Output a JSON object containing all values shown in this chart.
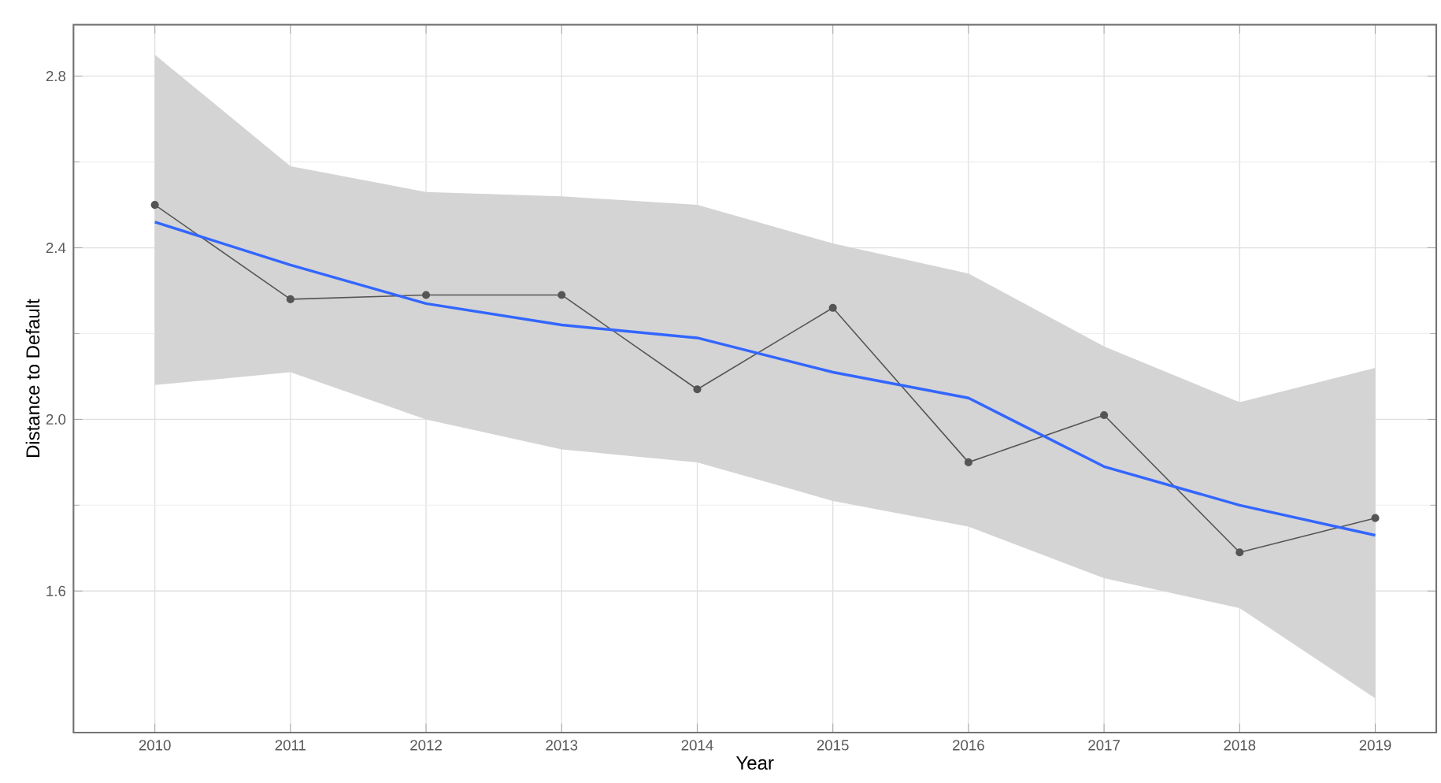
{
  "chart_data": {
    "type": "line",
    "xlabel": "Year",
    "ylabel": "Distance to Default",
    "x": [
      2010,
      2011,
      2012,
      2013,
      2014,
      2015,
      2016,
      2017,
      2018,
      2019
    ],
    "series": [
      {
        "color": "#555555",
        "marker": "circle",
        "values": [
          2.5,
          2.28,
          2.29,
          2.29,
          2.07,
          2.26,
          1.9,
          2.01,
          1.69,
          1.77
        ]
      },
      {
        "color": "#3366ff",
        "marker": "none",
        "values": [
          2.46,
          2.36,
          2.27,
          2.22,
          2.19,
          2.11,
          2.05,
          1.89,
          1.8,
          1.73
        ],
        "lower": [
          2.08,
          2.11,
          2.0,
          1.93,
          1.9,
          1.81,
          1.75,
          1.63,
          1.56,
          1.35
        ],
        "upper": [
          2.85,
          2.59,
          2.53,
          2.52,
          2.5,
          2.41,
          2.34,
          2.17,
          2.04,
          2.12
        ]
      }
    ],
    "xlim": [
      2009.4,
      2019.45
    ],
    "ylim": [
      1.27,
      2.92
    ],
    "xticks": [
      2010,
      2011,
      2012,
      2013,
      2014,
      2015,
      2016,
      2017,
      2018,
      2019
    ],
    "yticks": [
      {
        "value": 1.6,
        "label": "1.6"
      },
      {
        "value": 2.0,
        "label": "2.0"
      },
      {
        "value": 2.4,
        "label": "2.4"
      },
      {
        "value": 2.8,
        "label": "2.8"
      }
    ],
    "grid": true
  }
}
